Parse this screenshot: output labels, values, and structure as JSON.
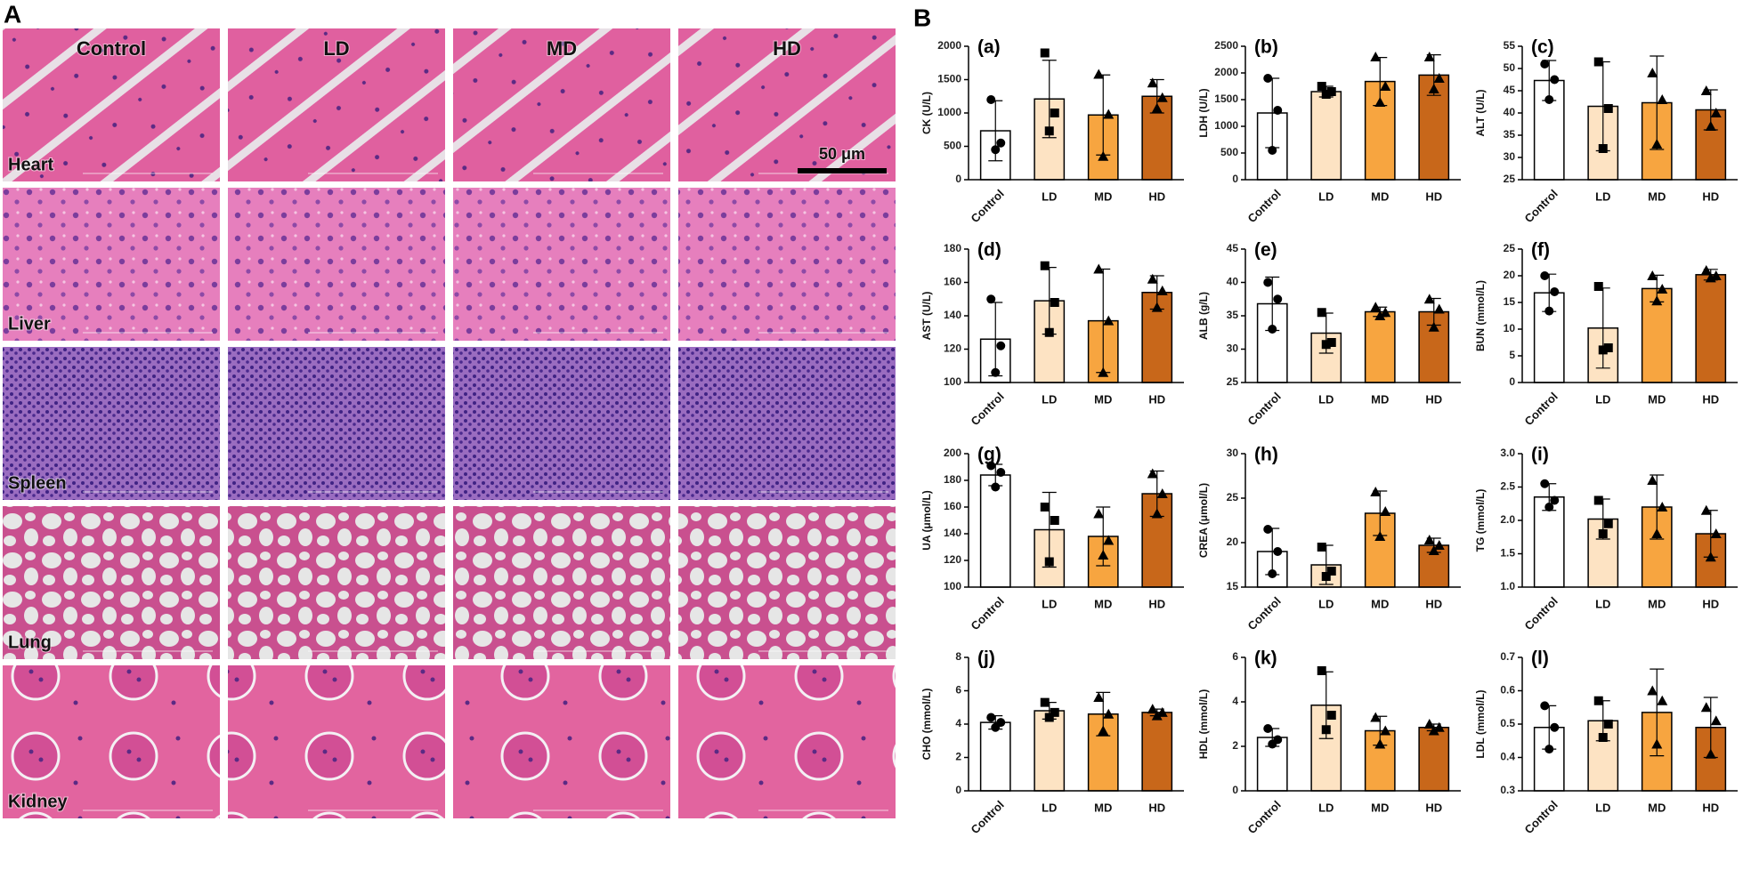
{
  "panel_a": {
    "label": "A",
    "columns": [
      "Control",
      "LD",
      "MD",
      "HD"
    ],
    "rows": [
      "Heart",
      "Liver",
      "Spleen",
      "Lung",
      "Kidney"
    ],
    "scale_bar": "50 μm"
  },
  "panel_b": {
    "label": "B"
  },
  "chart_data": [
    {
      "type": "bar",
      "label": "(a)",
      "ylabel": "CK (U/L)",
      "categories": [
        "Control",
        "LD",
        "MD",
        "HD"
      ],
      "values": [
        733,
        1210,
        970,
        1250
      ],
      "errors": [
        450,
        580,
        600,
        250
      ],
      "points": [
        [
          1200,
          550,
          450
        ],
        [
          1900,
          1000,
          730
        ],
        [
          1580,
          980,
          350
        ],
        [
          1450,
          1230,
          1070
        ]
      ],
      "colors": [
        "#ffffff",
        "#fde3c3",
        "#f7a540",
        "#c8671a"
      ],
      "ylim": [
        0,
        2000
      ],
      "yticks": [
        0,
        500,
        1000,
        1500,
        2000
      ]
    },
    {
      "type": "bar",
      "label": "(b)",
      "ylabel": "LDH (U/L)",
      "categories": [
        "Control",
        "LD",
        "MD",
        "HD"
      ],
      "values": [
        1250,
        1650,
        1840,
        1960
      ],
      "errors": [
        650,
        100,
        450,
        380
      ],
      "points": [
        [
          1900,
          1300,
          550
        ],
        [
          1750,
          1650,
          1600
        ],
        [
          2300,
          1750,
          1450
        ],
        [
          2300,
          1900,
          1700
        ]
      ],
      "colors": [
        "#ffffff",
        "#fde3c3",
        "#f7a540",
        "#c8671a"
      ],
      "ylim": [
        0,
        2500
      ],
      "yticks": [
        0,
        500,
        1000,
        1500,
        2000,
        2500
      ]
    },
    {
      "type": "bar",
      "label": "(c)",
      "ylabel": "ALT (U/L)",
      "categories": [
        "Control",
        "LD",
        "MD",
        "HD"
      ],
      "values": [
        47.3,
        41.5,
        42.3,
        40.7
      ],
      "errors": [
        4.5,
        10,
        10.5,
        4.5
      ],
      "points": [
        [
          51,
          47.5,
          43
        ],
        [
          51.5,
          41,
          32
        ],
        [
          49,
          43,
          33
        ],
        [
          45,
          40,
          37
        ]
      ],
      "colors": [
        "#ffffff",
        "#fde3c3",
        "#f7a540",
        "#c8671a"
      ],
      "ylim": [
        25,
        55
      ],
      "yticks": [
        25,
        30,
        35,
        40,
        45,
        50,
        55
      ]
    },
    {
      "type": "bar",
      "label": "(d)",
      "ylabel": "AST (U/L)",
      "categories": [
        "Control",
        "LD",
        "MD",
        "HD"
      ],
      "values": [
        126,
        149,
        137,
        154
      ],
      "errors": [
        22,
        20,
        31,
        10
      ],
      "points": [
        [
          150,
          122,
          106
        ],
        [
          170,
          148,
          130
        ],
        [
          168,
          137,
          106
        ],
        [
          162,
          155,
          145
        ]
      ],
      "colors": [
        "#ffffff",
        "#fde3c3",
        "#f7a540",
        "#c8671a"
      ],
      "ylim": [
        100,
        180
      ],
      "yticks": [
        100,
        120,
        140,
        160,
        180
      ]
    },
    {
      "type": "bar",
      "label": "(e)",
      "ylabel": "ALB (g/L)",
      "categories": [
        "Control",
        "LD",
        "MD",
        "HD"
      ],
      "values": [
        36.8,
        32.4,
        35.6,
        35.6
      ],
      "errors": [
        4,
        3,
        0.7,
        2
      ],
      "points": [
        [
          40,
          37.5,
          33
        ],
        [
          35.5,
          31,
          30.7
        ],
        [
          36.3,
          35.5,
          35
        ],
        [
          37.5,
          36,
          33.3
        ]
      ],
      "colors": [
        "#ffffff",
        "#fde3c3",
        "#f7a540",
        "#c8671a"
      ],
      "ylim": [
        25,
        45
      ],
      "yticks": [
        25,
        30,
        35,
        40,
        45
      ]
    },
    {
      "type": "bar",
      "label": "(f)",
      "ylabel": "BUN (mmol/L)",
      "categories": [
        "Control",
        "LD",
        "MD",
        "HD"
      ],
      "values": [
        16.8,
        10.2,
        17.6,
        20.2
      ],
      "errors": [
        3.5,
        7.5,
        2.5,
        1
      ],
      "points": [
        [
          20,
          17,
          13.4
        ],
        [
          18,
          6.5,
          6.1
        ],
        [
          20,
          17.5,
          15.3
        ],
        [
          21,
          20,
          19.6
        ]
      ],
      "colors": [
        "#ffffff",
        "#fde3c3",
        "#f7a540",
        "#c8671a"
      ],
      "ylim": [
        0,
        25
      ],
      "yticks": [
        0,
        5,
        10,
        15,
        20,
        25
      ]
    },
    {
      "type": "bar",
      "label": "(g)",
      "ylabel": "UA (μmol/L)",
      "categories": [
        "Control",
        "LD",
        "MD",
        "HD"
      ],
      "values": [
        184,
        143,
        138,
        170
      ],
      "errors": [
        8,
        28,
        22,
        17
      ],
      "points": [
        [
          191,
          186,
          175
        ],
        [
          160,
          150,
          119
        ],
        [
          155,
          135,
          124
        ],
        [
          185,
          170,
          155
        ]
      ],
      "colors": [
        "#ffffff",
        "#fde3c3",
        "#f7a540",
        "#c8671a"
      ],
      "ylim": [
        100,
        200
      ],
      "yticks": [
        100,
        120,
        140,
        160,
        180,
        200
      ]
    },
    {
      "type": "bar",
      "label": "(h)",
      "ylabel": "CREA (μmol/L)",
      "categories": [
        "Control",
        "LD",
        "MD",
        "HD"
      ],
      "values": [
        19,
        17.5,
        23.3,
        19.7
      ],
      "errors": [
        2.6,
        2.2,
        2.5,
        0.8
      ],
      "points": [
        [
          21.5,
          19,
          16.5
        ],
        [
          19.5,
          16.8,
          16.2
        ],
        [
          25.7,
          23.5,
          20.7
        ],
        [
          20.3,
          19.7,
          19.1
        ]
      ],
      "colors": [
        "#ffffff",
        "#fde3c3",
        "#f7a540",
        "#c8671a"
      ],
      "ylim": [
        15,
        30
      ],
      "yticks": [
        15,
        20,
        25,
        30
      ]
    },
    {
      "type": "bar",
      "label": "(i)",
      "ylabel": "TG (mmol/L)",
      "categories": [
        "Control",
        "LD",
        "MD",
        "HD"
      ],
      "values": [
        2.35,
        2.02,
        2.2,
        1.8
      ],
      "errors": [
        0.2,
        0.3,
        0.48,
        0.35
      ],
      "points": [
        [
          2.55,
          2.3,
          2.2
        ],
        [
          2.3,
          1.95,
          1.8
        ],
        [
          2.6,
          2.2,
          1.8
        ],
        [
          2.15,
          1.8,
          1.45
        ]
      ],
      "colors": [
        "#ffffff",
        "#fde3c3",
        "#f7a540",
        "#c8671a"
      ],
      "ylim": [
        1,
        3
      ],
      "yticks": [
        {
          "value": 1,
          "label": "1.0"
        },
        1.5,
        {
          "value": 2,
          "label": "2.0"
        },
        2.5,
        {
          "value": 3,
          "label": "3.0"
        }
      ]
    },
    {
      "type": "bar",
      "label": "(j)",
      "ylabel": "CHO (mmol/L)",
      "categories": [
        "Control",
        "LD",
        "MD",
        "HD"
      ],
      "values": [
        4.1,
        4.8,
        4.6,
        4.7
      ],
      "errors": [
        0.4,
        0.5,
        1.3,
        0.2
      ],
      "points": [
        [
          4.4,
          4.1,
          3.8
        ],
        [
          5.3,
          4.7,
          4.4
        ],
        [
          5.6,
          4.6,
          3.6
        ],
        [
          4.9,
          4.7,
          4.5
        ]
      ],
      "colors": [
        "#ffffff",
        "#fde3c3",
        "#f7a540",
        "#c8671a"
      ],
      "ylim": [
        0,
        8
      ],
      "yticks": [
        0,
        2,
        4,
        6,
        8
      ]
    },
    {
      "type": "bar",
      "label": "(k)",
      "ylabel": "HDL (mmol/L)",
      "categories": [
        "Control",
        "LD",
        "MD",
        "HD"
      ],
      "values": [
        2.4,
        3.85,
        2.7,
        2.85
      ],
      "errors": [
        0.4,
        1.5,
        0.65,
        0.15
      ],
      "points": [
        [
          2.8,
          2.3,
          2.1
        ],
        [
          5.4,
          3.4,
          2.75
        ],
        [
          3.3,
          2.7,
          2.1
        ],
        [
          3.0,
          2.85,
          2.7
        ]
      ],
      "colors": [
        "#ffffff",
        "#fde3c3",
        "#f7a540",
        "#c8671a"
      ],
      "ylim": [
        0,
        6
      ],
      "yticks": [
        0,
        2,
        4,
        6
      ]
    },
    {
      "type": "bar",
      "label": "(l)",
      "ylabel": "LDL (mmol/L)",
      "categories": [
        "Control",
        "LD",
        "MD",
        "HD"
      ],
      "values": [
        0.49,
        0.51,
        0.535,
        0.49
      ],
      "errors": [
        0.065,
        0.06,
        0.13,
        0.09
      ],
      "points": [
        [
          0.555,
          0.49,
          0.425
        ],
        [
          0.57,
          0.5,
          0.46
        ],
        [
          0.6,
          0.57,
          0.44
        ],
        [
          0.55,
          0.51,
          0.41
        ]
      ],
      "colors": [
        "#ffffff",
        "#fde3c3",
        "#f7a540",
        "#c8671a"
      ],
      "ylim": [
        0.3,
        0.7
      ],
      "yticks": [
        0.3,
        0.4,
        0.5,
        0.6,
        0.7
      ]
    }
  ]
}
